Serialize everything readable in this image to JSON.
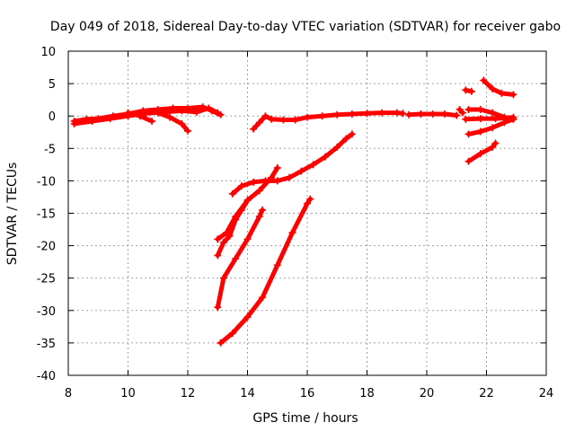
{
  "chart_data": {
    "type": "scatter",
    "title": "Day 049 of 2018, Sidereal Day-to-day VTEC variation (SDTVAR) for receiver gabo",
    "xlabel": "GPS time / hours",
    "ylabel": "SDTVAR / TECUs",
    "xlim": [
      8,
      24
    ],
    "ylim": [
      -40,
      10
    ],
    "x_ticks": [
      8,
      10,
      12,
      14,
      16,
      18,
      20,
      22,
      24
    ],
    "y_ticks": [
      10,
      5,
      0,
      -5,
      -10,
      -15,
      -20,
      -25,
      -30,
      -35,
      -40
    ],
    "grid": true,
    "marker": "+",
    "series_color": "#ff0000",
    "series": [
      {
        "name": "track-main-1",
        "points": [
          [
            8.2,
            -0.8
          ],
          [
            8.6,
            -0.5
          ],
          [
            9.0,
            -0.4
          ],
          [
            9.5,
            0.0
          ],
          [
            10.0,
            0.3
          ],
          [
            10.5,
            0.8
          ],
          [
            11.0,
            1.0
          ],
          [
            11.5,
            1.2
          ],
          [
            12.0,
            1.2
          ],
          [
            12.5,
            1.4
          ],
          [
            12.8,
            0.8
          ],
          [
            13.1,
            0.2
          ]
        ]
      },
      {
        "name": "track-main-1b",
        "points": [
          [
            8.2,
            -1.2
          ],
          [
            8.8,
            -0.8
          ],
          [
            9.4,
            -0.4
          ],
          [
            10.0,
            0.0
          ],
          [
            10.6,
            0.4
          ],
          [
            11.2,
            0.6
          ],
          [
            11.8,
            0.8
          ],
          [
            12.3,
            0.6
          ],
          [
            12.7,
            1.2
          ],
          [
            13.0,
            0.5
          ]
        ]
      },
      {
        "name": "track-branch-a",
        "points": [
          [
            10.0,
            0.5
          ],
          [
            10.4,
            0.0
          ],
          [
            10.8,
            -0.8
          ]
        ]
      },
      {
        "name": "track-branch-b",
        "points": [
          [
            11.0,
            0.5
          ],
          [
            11.4,
            -0.2
          ],
          [
            11.8,
            -1.2
          ],
          [
            12.0,
            -2.3
          ]
        ]
      },
      {
        "name": "track-main-2",
        "points": [
          [
            14.2,
            -2.0
          ],
          [
            14.4,
            -1.0
          ],
          [
            14.6,
            0.0
          ],
          [
            14.8,
            -0.5
          ],
          [
            15.2,
            -0.6
          ],
          [
            15.6,
            -0.6
          ],
          [
            16.0,
            -0.2
          ],
          [
            16.5,
            0.0
          ],
          [
            17.0,
            0.2
          ],
          [
            17.5,
            0.3
          ],
          [
            18.0,
            0.4
          ],
          [
            18.5,
            0.5
          ],
          [
            19.0,
            0.5
          ],
          [
            19.2,
            0.4
          ]
        ]
      },
      {
        "name": "track-main-3",
        "points": [
          [
            19.4,
            0.2
          ],
          [
            19.8,
            0.3
          ],
          [
            20.2,
            0.3
          ],
          [
            20.6,
            0.3
          ],
          [
            21.0,
            0.1
          ]
        ]
      },
      {
        "name": "track-point-21",
        "points": [
          [
            21.1,
            1.0
          ],
          [
            21.2,
            0.5
          ]
        ]
      },
      {
        "name": "track-late-1",
        "points": [
          [
            21.3,
            4.0
          ],
          [
            21.5,
            3.8
          ]
        ]
      },
      {
        "name": "track-late-2",
        "points": [
          [
            21.9,
            5.5
          ],
          [
            22.2,
            4.2
          ],
          [
            22.5,
            3.5
          ],
          [
            22.9,
            3.3
          ]
        ]
      },
      {
        "name": "track-late-3",
        "points": [
          [
            21.4,
            1.0
          ],
          [
            21.8,
            1.0
          ],
          [
            22.2,
            0.5
          ],
          [
            22.6,
            -0.2
          ],
          [
            22.9,
            -0.5
          ]
        ]
      },
      {
        "name": "track-late-4",
        "points": [
          [
            21.3,
            -0.5
          ],
          [
            21.8,
            -0.4
          ],
          [
            22.3,
            -0.4
          ],
          [
            22.9,
            -0.2
          ]
        ]
      },
      {
        "name": "track-late-5",
        "points": [
          [
            21.4,
            -2.8
          ],
          [
            21.8,
            -2.4
          ],
          [
            22.2,
            -1.8
          ],
          [
            22.6,
            -1.0
          ],
          [
            22.9,
            -0.5
          ]
        ]
      },
      {
        "name": "track-late-6",
        "points": [
          [
            21.4,
            -7.0
          ],
          [
            21.8,
            -5.8
          ],
          [
            22.2,
            -4.8
          ],
          [
            22.3,
            -4.2
          ]
        ]
      },
      {
        "name": "track-drop-1",
        "points": [
          [
            13.5,
            -12.0
          ],
          [
            13.8,
            -10.8
          ],
          [
            14.2,
            -10.2
          ],
          [
            14.6,
            -10.0
          ],
          [
            15.0,
            -10.0
          ],
          [
            15.4,
            -9.5
          ],
          [
            15.8,
            -8.5
          ],
          [
            16.2,
            -7.5
          ],
          [
            16.6,
            -6.3
          ],
          [
            17.0,
            -4.8
          ],
          [
            17.3,
            -3.5
          ],
          [
            17.5,
            -2.8
          ]
        ]
      },
      {
        "name": "track-drop-2",
        "points": [
          [
            13.0,
            -19.0
          ],
          [
            13.3,
            -18.0
          ],
          [
            13.6,
            -15.5
          ],
          [
            14.0,
            -13.0
          ],
          [
            14.4,
            -11.5
          ],
          [
            14.8,
            -9.5
          ],
          [
            15.0,
            -8.0
          ]
        ]
      },
      {
        "name": "track-drop-3",
        "points": [
          [
            13.0,
            -21.5
          ],
          [
            13.2,
            -19.5
          ],
          [
            13.4,
            -18.5
          ],
          [
            13.6,
            -16.0
          ],
          [
            13.8,
            -14.5
          ],
          [
            14.0,
            -13.0
          ]
        ]
      },
      {
        "name": "track-drop-4",
        "points": [
          [
            13.0,
            -29.5
          ],
          [
            13.2,
            -25.0
          ],
          [
            13.6,
            -22.0
          ],
          [
            14.0,
            -19.0
          ],
          [
            14.4,
            -15.5
          ],
          [
            14.5,
            -14.5
          ]
        ]
      },
      {
        "name": "track-drop-5",
        "points": [
          [
            13.1,
            -35.0
          ],
          [
            13.5,
            -33.5
          ],
          [
            14.0,
            -31.0
          ],
          [
            14.5,
            -28.0
          ],
          [
            15.0,
            -23.0
          ],
          [
            15.5,
            -18.0
          ],
          [
            16.0,
            -13.5
          ],
          [
            16.1,
            -12.8
          ]
        ]
      }
    ]
  }
}
